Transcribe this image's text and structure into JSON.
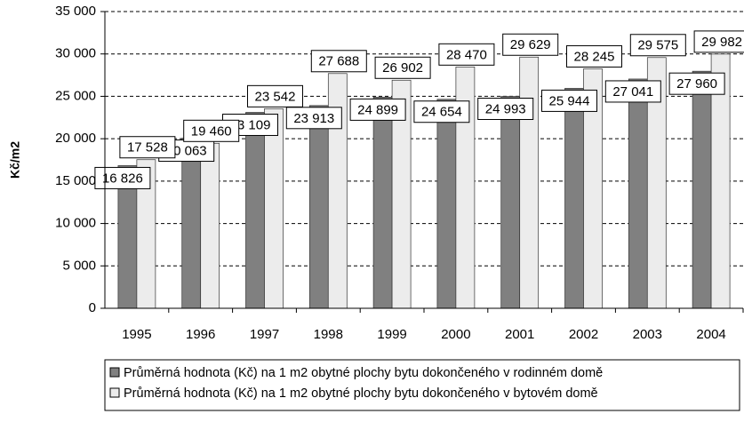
{
  "chart_data": {
    "type": "bar",
    "y_label": "Kč/m2",
    "categories": [
      "1995",
      "1996",
      "1997",
      "1998",
      "1999",
      "2000",
      "2001",
      "2002",
      "2003",
      "2004"
    ],
    "series": [
      {
        "name": "Průměrná hodnota (Kč) na 1 m2 obytné plochy bytu dokončeného v rodinném domě",
        "color": "#808080",
        "values": [
          16826,
          20063,
          23109,
          23913,
          24899,
          24654,
          24993,
          25944,
          27041,
          27960
        ],
        "value_labels": [
          "16 826",
          "20 063",
          "23 109",
          "23 913",
          "24 899",
          "24 654",
          "24 993",
          "25 944",
          "27 041",
          "27 960"
        ]
      },
      {
        "name": "Průměrná hodnota (Kč) na 1 m2 obytné plochy bytu dokončeného v bytovém domě",
        "color": "#ececec",
        "values": [
          17528,
          19460,
          23542,
          27688,
          26902,
          28470,
          29629,
          28245,
          29575,
          29982
        ],
        "value_labels": [
          "17 528",
          "19 460",
          "23 542",
          "27 688",
          "26 902",
          "28 470",
          "29 629",
          "28 245",
          "29 575",
          "29 982"
        ]
      }
    ],
    "ylim": [
      0,
      35000
    ],
    "yticks": [
      0,
      {
        "value": 5000,
        "label": "5 000"
      },
      {
        "value": 10000,
        "label": "10 000"
      },
      {
        "value": 15000,
        "label": "15 000"
      },
      {
        "value": 20000,
        "label": "20 000"
      },
      {
        "value": 25000,
        "label": "25 000"
      },
      {
        "value": 30000,
        "label": "30 000"
      },
      {
        "value": 35000,
        "label": "35 000"
      }
    ],
    "grid": true
  }
}
